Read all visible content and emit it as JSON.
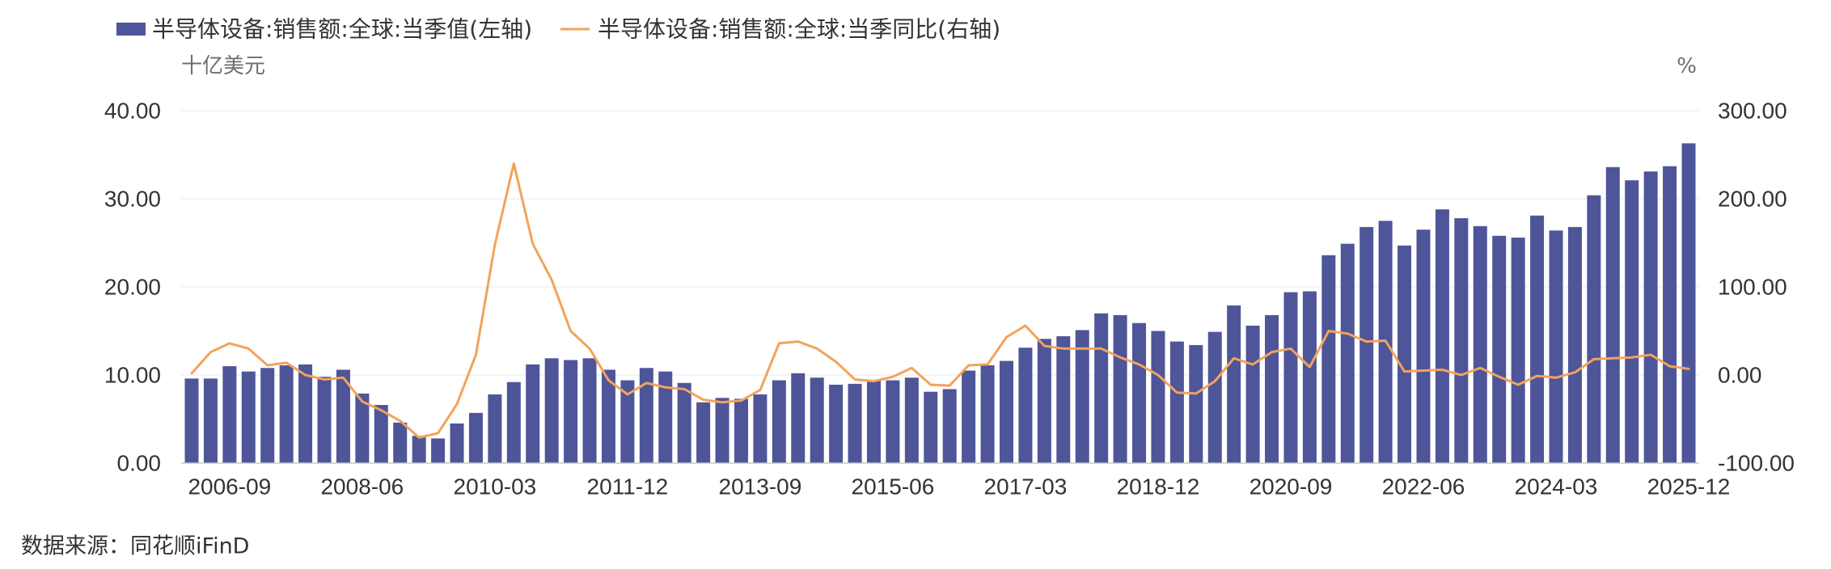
{
  "chart_data": {
    "type": "bar",
    "x": [
      "2006-03",
      "2006-06",
      "2006-09",
      "2006-12",
      "2007-03",
      "2007-06",
      "2007-09",
      "2007-12",
      "2008-03",
      "2008-06",
      "2008-09",
      "2008-12",
      "2009-03",
      "2009-06",
      "2009-09",
      "2009-12",
      "2010-03",
      "2010-06",
      "2010-09",
      "2010-12",
      "2011-03",
      "2011-06",
      "2011-09",
      "2011-12",
      "2012-03",
      "2012-06",
      "2012-09",
      "2012-12",
      "2013-03",
      "2013-06",
      "2013-09",
      "2013-12",
      "2014-03",
      "2014-06",
      "2014-09",
      "2014-12",
      "2015-03",
      "2015-06",
      "2015-09",
      "2015-12",
      "2016-03",
      "2016-06",
      "2016-09",
      "2016-12",
      "2017-03",
      "2017-06",
      "2017-09",
      "2017-12",
      "2018-03",
      "2018-06",
      "2018-09",
      "2018-12",
      "2019-03",
      "2019-06",
      "2019-09",
      "2019-12",
      "2020-03",
      "2020-06",
      "2020-09",
      "2020-12",
      "2021-03",
      "2021-06",
      "2021-09",
      "2021-12",
      "2022-03",
      "2022-06",
      "2022-09",
      "2022-12",
      "2023-03",
      "2023-06",
      "2023-09",
      "2023-12",
      "2024-03",
      "2024-06",
      "2024-09",
      "2024-12",
      "2025-03",
      "2025-06",
      "2025-09",
      "2025-12"
    ],
    "series": [
      {
        "name": "半导体设备:销售额:全球:当季值(左轴)",
        "type": "bar",
        "axis": "left",
        "color": "#4E5599",
        "values": [
          9.6,
          9.6,
          11.0,
          10.4,
          10.8,
          11.1,
          11.2,
          9.8,
          10.6,
          7.9,
          6.6,
          4.6,
          3.1,
          2.8,
          4.5,
          5.7,
          7.8,
          9.2,
          11.2,
          11.9,
          11.7,
          11.9,
          10.6,
          9.4,
          10.8,
          10.4,
          9.1,
          6.9,
          7.4,
          7.3,
          7.8,
          9.4,
          10.2,
          9.7,
          8.9,
          9.0,
          9.4,
          9.4,
          9.7,
          8.1,
          8.4,
          10.5,
          11.1,
          11.6,
          13.1,
          14.1,
          14.4,
          15.1,
          17.0,
          16.8,
          15.9,
          15.0,
          13.8,
          13.4,
          14.9,
          17.9,
          15.6,
          16.8,
          19.4,
          19.5,
          23.6,
          24.9,
          26.8,
          27.5,
          24.7,
          26.5,
          28.8,
          27.8,
          26.9,
          25.8,
          25.6,
          28.1,
          26.4,
          26.8,
          30.4,
          33.6,
          32.1,
          33.1,
          33.7,
          36.3
        ]
      },
      {
        "name": "半导体设备:销售额:全球:当季同比(右轴)",
        "type": "line",
        "axis": "right",
        "color": "#F2A35C",
        "values": [
          2,
          26,
          36,
          30,
          11,
          14,
          0,
          -5,
          -3,
          -30,
          -40,
          -52,
          -71,
          -66,
          -33,
          23,
          148,
          240,
          149,
          108,
          50,
          30,
          -6,
          -22,
          -9,
          -14,
          -16,
          -28,
          -31,
          -29,
          -17,
          36,
          38,
          30,
          15,
          -5,
          -7,
          -2,
          8,
          -11,
          -12,
          11,
          12,
          43,
          56,
          33,
          30,
          30,
          30,
          20,
          12,
          0,
          -20,
          -21,
          -7,
          19,
          12,
          26,
          30,
          9,
          50,
          47,
          38,
          39,
          4,
          5,
          6,
          0,
          8,
          -2,
          -11,
          -1,
          -3,
          3,
          18,
          19,
          20,
          23,
          10,
          7
        ]
      }
    ],
    "y_axis_left": {
      "label": "十亿美元",
      "range": [
        0,
        40
      ],
      "tick_labels": [
        "0.00",
        "10.00",
        "20.00",
        "30.00",
        "40.00"
      ]
    },
    "y_axis_right": {
      "label": "%",
      "range": [
        -100,
        300
      ],
      "tick_labels": [
        "-100.00",
        "0.00",
        "100.00",
        "200.00",
        "300.00"
      ]
    },
    "grid": true,
    "legend_position": "top-left"
  },
  "footer": {
    "source": "数据来源：同花顺iFinD"
  }
}
